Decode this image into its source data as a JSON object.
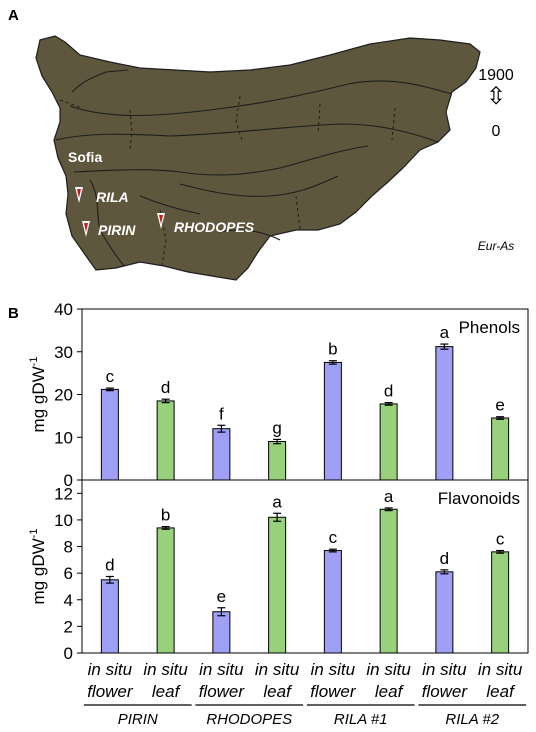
{
  "panel_a": {
    "label": "A",
    "cities": [
      {
        "name": "Sofia"
      }
    ],
    "sites": [
      {
        "name": "RILA"
      },
      {
        "name": "PIRIN"
      },
      {
        "name": "RHODOPES"
      }
    ],
    "scale_top": "1900",
    "scale_arrow": "⇳",
    "scale_bottom": "0",
    "region_label": "Eur-As",
    "colors": {
      "land": "#5e573d",
      "border": "#1e1e1e",
      "marker": "#c8161d"
    }
  },
  "panel_b": {
    "label": "B",
    "colors": {
      "flower": "#9f9ff5",
      "leaf": "#98d07c",
      "axis": "#000000"
    },
    "group_labels": [
      "PIRIN",
      "RHODOPES",
      "RILA #1",
      "RILA #2"
    ]
  },
  "chart_data": [
    {
      "type": "bar",
      "title": "Phenols",
      "ylabel": "mg gDW-1",
      "ylim": [
        0,
        40
      ],
      "yticks": [
        0,
        10,
        20,
        30,
        40
      ],
      "categories": [
        {
          "line1": "in situ",
          "line2": "flower"
        },
        {
          "line1": "in situ",
          "line2": "leaf"
        },
        {
          "line1": "in situ",
          "line2": "flower"
        },
        {
          "line1": "in situ",
          "line2": "leaf"
        },
        {
          "line1": "in situ",
          "line2": "flower"
        },
        {
          "line1": "in situ",
          "line2": "leaf"
        },
        {
          "line1": "in situ",
          "line2": "flower"
        },
        {
          "line1": "in situ",
          "line2": "leaf"
        }
      ],
      "values": [
        21.2,
        18.5,
        12.0,
        9.0,
        27.5,
        17.8,
        31.2,
        14.5
      ],
      "errors": [
        0.3,
        0.4,
        0.8,
        0.5,
        0.4,
        0.3,
        0.6,
        0.3
      ],
      "letters": [
        "c",
        "d",
        "f",
        "g",
        "b",
        "d",
        "a",
        "e"
      ],
      "grid": false
    },
    {
      "type": "bar",
      "title": "Flavonoids",
      "ylabel": "mg gDW-1",
      "ylim": [
        0,
        13
      ],
      "yticks": [
        0,
        2,
        4,
        6,
        8,
        10,
        12
      ],
      "categories": [
        {
          "line1": "in situ",
          "line2": "flower"
        },
        {
          "line1": "in situ",
          "line2": "leaf"
        },
        {
          "line1": "in situ",
          "line2": "flower"
        },
        {
          "line1": "in situ",
          "line2": "leaf"
        },
        {
          "line1": "in situ",
          "line2": "flower"
        },
        {
          "line1": "in situ",
          "line2": "leaf"
        },
        {
          "line1": "in situ",
          "line2": "flower"
        },
        {
          "line1": "in situ",
          "line2": "leaf"
        }
      ],
      "values": [
        5.5,
        9.4,
        3.1,
        10.2,
        7.7,
        10.8,
        6.1,
        7.6
      ],
      "errors": [
        0.25,
        0.1,
        0.3,
        0.3,
        0.1,
        0.1,
        0.15,
        0.1
      ],
      "letters": [
        "d",
        "b",
        "e",
        "a",
        "c",
        "a",
        "d",
        "c"
      ],
      "grid": false
    }
  ]
}
